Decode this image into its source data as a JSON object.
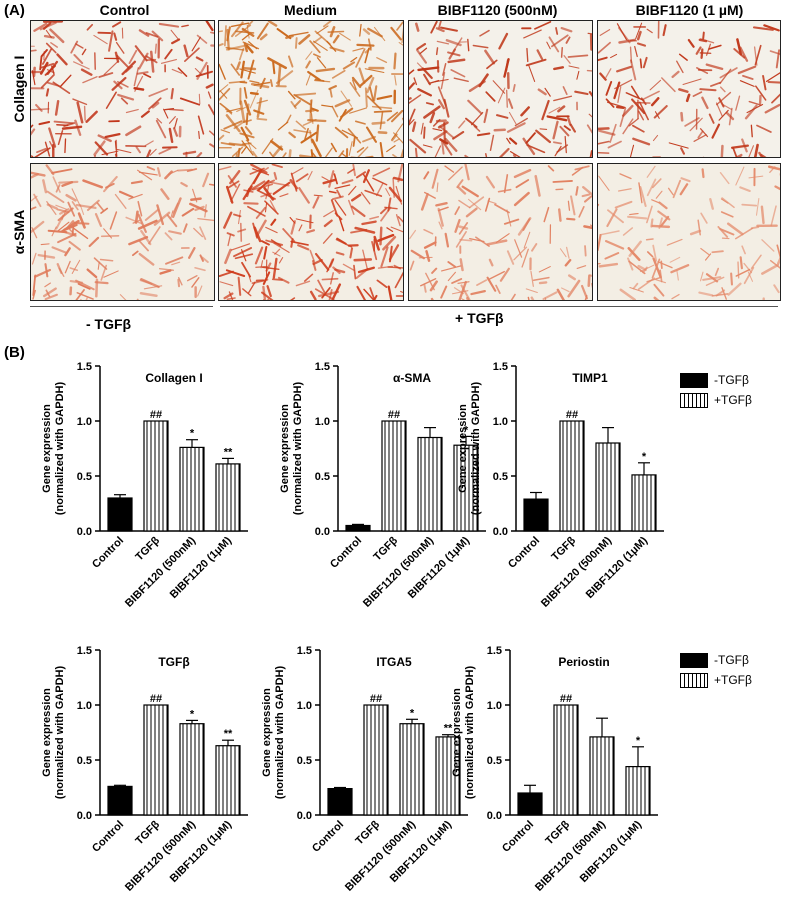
{
  "panel_a": {
    "label": "(A)",
    "columns": [
      "Control",
      "Medium",
      "BIBF1120 (500nM)",
      "BIBF1120 (1 µM)"
    ],
    "rows": [
      "Collagen I",
      "α-SMA"
    ],
    "groups": {
      "minus": "- TGFβ",
      "plus": "+ TGFβ"
    }
  },
  "panel_b": {
    "label": "(B)",
    "legend": [
      {
        "label": "-TGFβ",
        "fill": "black"
      },
      {
        "label": "+TGFβ",
        "fill": "stripe"
      }
    ],
    "ylabel_line1": "Gene expression",
    "ylabel_line2": "(normalized with GAPDH)"
  },
  "colors": {
    "bar_fill_control": "#000000",
    "stain": "#c8401e",
    "background": "#ffffff"
  },
  "chart_data": [
    {
      "type": "bar",
      "title": "Collagen I",
      "categories": [
        "Control",
        "TGFβ",
        "BIBF1120 (500nM)",
        "BIBF1120 (1μM)"
      ],
      "values": [
        0.3,
        1.0,
        0.76,
        0.61
      ],
      "errors": [
        0.03,
        0.0,
        0.07,
        0.05
      ],
      "annotations": [
        "",
        "##",
        "*",
        "**"
      ],
      "ylim": [
        0,
        1.5
      ],
      "yticks": [
        "0.0",
        "0.5",
        "1.0",
        "1.5"
      ]
    },
    {
      "type": "bar",
      "title": "α-SMA",
      "categories": [
        "Control",
        "TGFβ",
        "BIBF1120 (500nM)",
        "BIBF1120 (1μM)"
      ],
      "values": [
        0.05,
        1.0,
        0.85,
        0.78
      ],
      "errors": [
        0.01,
        0.0,
        0.09,
        0.08
      ],
      "annotations": [
        "",
        "##",
        "",
        "*"
      ],
      "ylim": [
        0,
        1.5
      ],
      "yticks": [
        "0.0",
        "0.5",
        "1.0",
        "1.5"
      ]
    },
    {
      "type": "bar",
      "title": "TIMP1",
      "categories": [
        "Control",
        "TGFβ",
        "BIBF1120 (500nM)",
        "BIBF1120 (1μM)"
      ],
      "values": [
        0.29,
        1.0,
        0.8,
        0.51
      ],
      "errors": [
        0.06,
        0.0,
        0.14,
        0.11
      ],
      "annotations": [
        "",
        "##",
        "",
        "*"
      ],
      "ylim": [
        0,
        1.5
      ],
      "yticks": [
        "0.0",
        "0.5",
        "1.0",
        "1.5"
      ]
    },
    {
      "type": "bar",
      "title": "TGFβ",
      "categories": [
        "Control",
        "TGFβ",
        "BIBF1120 (500nM)",
        "BIBF1120 (1μM)"
      ],
      "values": [
        0.26,
        1.0,
        0.83,
        0.63
      ],
      "errors": [
        0.01,
        0.0,
        0.03,
        0.05
      ],
      "annotations": [
        "",
        "##",
        "*",
        "**"
      ],
      "ylim": [
        0,
        1.5
      ],
      "yticks": [
        "0.0",
        "0.5",
        "1.0",
        "1.5"
      ]
    },
    {
      "type": "bar",
      "title": "ITGA5",
      "categories": [
        "Control",
        "TGFβ",
        "BIBF1120 (500nM)",
        "BIBF1120 (1μM)"
      ],
      "values": [
        0.24,
        1.0,
        0.83,
        0.71
      ],
      "errors": [
        0.01,
        0.0,
        0.04,
        0.02
      ],
      "annotations": [
        "",
        "##",
        "*",
        "**"
      ],
      "ylim": [
        0,
        1.5
      ],
      "yticks": [
        "0.0",
        "0.5",
        "1.0",
        "1.5"
      ]
    },
    {
      "type": "bar",
      "title": "Periostin",
      "categories": [
        "Control",
        "TGFβ",
        "BIBF1120 (500nM)",
        "BIBF1120 (1μM)"
      ],
      "values": [
        0.2,
        1.0,
        0.71,
        0.44
      ],
      "errors": [
        0.07,
        0.0,
        0.17,
        0.18
      ],
      "annotations": [
        "",
        "##",
        "",
        "*"
      ],
      "ylim": [
        0,
        1.5
      ],
      "yticks": [
        "0.0",
        "0.5",
        "1.0",
        "1.5"
      ]
    }
  ]
}
